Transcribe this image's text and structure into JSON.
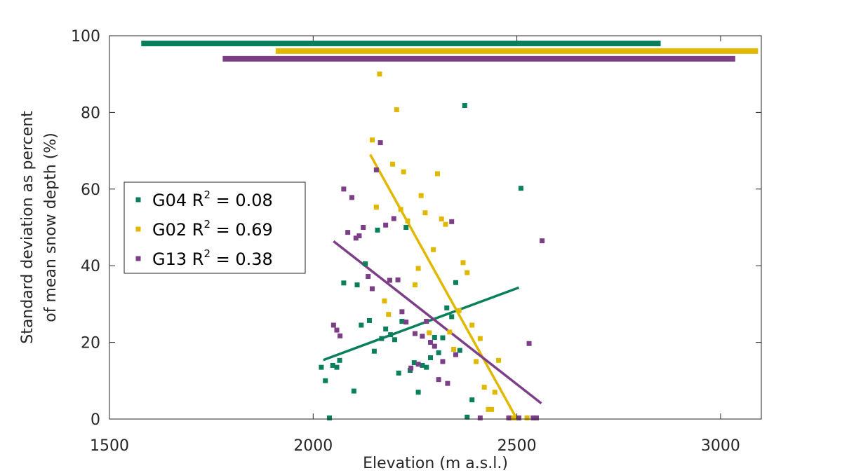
{
  "chart_data": {
    "type": "scatter",
    "title": "",
    "xlabel": "Elevation (m a.s.l.)",
    "ylabel_lines": [
      "Standard deviation as percent",
      "of mean snow depth (%)"
    ],
    "xlim": [
      1500,
      3100
    ],
    "ylim": [
      0,
      100
    ],
    "xticks": [
      "1500",
      "2000",
      "2500",
      "3000"
    ],
    "yticks": [
      "0",
      "20",
      "40",
      "60",
      "80",
      "100"
    ],
    "grid": false,
    "legend_position": "left",
    "series": [
      {
        "name": "G04",
        "r2_label": "R",
        "r2_sup": "2",
        "r2_value": " = 0.08",
        "color": "#0a7f5c",
        "points": [
          [
            2020,
            13.5
          ],
          [
            2030,
            10
          ],
          [
            2040,
            0.3
          ],
          [
            2048,
            14
          ],
          [
            2058,
            13.5
          ],
          [
            2065,
            15.3
          ],
          [
            2075,
            35.5
          ],
          [
            2100,
            7.3
          ],
          [
            2108,
            35
          ],
          [
            2118,
            24.5
          ],
          [
            2128,
            40.5
          ],
          [
            2138,
            25.7
          ],
          [
            2150,
            17.7
          ],
          [
            2158,
            49.3
          ],
          [
            2168,
            21
          ],
          [
            2178,
            23.5
          ],
          [
            2190,
            22
          ],
          [
            2200,
            20.7
          ],
          [
            2210,
            12
          ],
          [
            2218,
            25.5
          ],
          [
            2228,
            50
          ],
          [
            2238,
            12.7
          ],
          [
            2248,
            14.7
          ],
          [
            2258,
            7
          ],
          [
            2268,
            14
          ],
          [
            2278,
            13.5
          ],
          [
            2288,
            16
          ],
          [
            2298,
            21.3
          ],
          [
            2308,
            17.3
          ],
          [
            2318,
            21.2
          ],
          [
            2328,
            29
          ],
          [
            2340,
            26.7
          ],
          [
            2350,
            35.6
          ],
          [
            2360,
            17.9
          ],
          [
            2372,
            81.8
          ],
          [
            2378,
            0.5
          ],
          [
            2390,
            5
          ],
          [
            2510,
            60.2
          ]
        ],
        "trend": [
          [
            2025,
            15.4
          ],
          [
            2505,
            34.3
          ]
        ],
        "range_bar": [
          1578,
          2853
        ],
        "range_bar_y": 98
      },
      {
        "name": "G02",
        "r2_label": "R",
        "r2_sup": "2",
        "r2_value": " = 0.69",
        "color": "#e1b800",
        "points": [
          [
            2145,
            72.8
          ],
          [
            2155,
            55.3
          ],
          [
            2163,
            90
          ],
          [
            2175,
            30.8
          ],
          [
            2185,
            27.3
          ],
          [
            2195,
            66.5
          ],
          [
            2205,
            80.7
          ],
          [
            2215,
            54.7
          ],
          [
            2222,
            64.5
          ],
          [
            2232,
            51.7
          ],
          [
            2250,
            35
          ],
          [
            2258,
            39.3
          ],
          [
            2265,
            58.3
          ],
          [
            2275,
            53.8
          ],
          [
            2285,
            22.5
          ],
          [
            2295,
            44.2
          ],
          [
            2305,
            64
          ],
          [
            2315,
            52.2
          ],
          [
            2325,
            50.8
          ],
          [
            2335,
            22.7
          ],
          [
            2345,
            18.2
          ],
          [
            2358,
            28.3
          ],
          [
            2368,
            40.8
          ],
          [
            2378,
            38.2
          ],
          [
            2390,
            24.5
          ],
          [
            2400,
            15
          ],
          [
            2410,
            21
          ],
          [
            2420,
            8.3
          ],
          [
            2430,
            2.5
          ],
          [
            2438,
            2.5
          ],
          [
            2446,
            7
          ],
          [
            2455,
            15.3
          ],
          [
            2485,
            0.3
          ],
          [
            2495,
            0.3
          ],
          [
            2525,
            0.3
          ]
        ],
        "trend": [
          [
            2140,
            69
          ],
          [
            2500,
            0
          ]
        ],
        "range_bar": [
          1908,
          3092
        ],
        "range_bar_y": 96
      },
      {
        "name": "G13",
        "r2_label": "R",
        "r2_sup": "2",
        "r2_value": " = 0.38",
        "color": "#7c3f87",
        "points": [
          [
            2050,
            24.5
          ],
          [
            2058,
            23.2
          ],
          [
            2066,
            21.7
          ],
          [
            2075,
            60
          ],
          [
            2085,
            48.7
          ],
          [
            2095,
            57.8
          ],
          [
            2105,
            47.2
          ],
          [
            2113,
            47.8
          ],
          [
            2123,
            50
          ],
          [
            2135,
            37.2
          ],
          [
            2145,
            34
          ],
          [
            2155,
            65
          ],
          [
            2165,
            72.1
          ],
          [
            2178,
            50.6
          ],
          [
            2188,
            36.2
          ],
          [
            2198,
            52.3
          ],
          [
            2208,
            36.3
          ],
          [
            2218,
            28
          ],
          [
            2228,
            25.3
          ],
          [
            2240,
            13.3
          ],
          [
            2250,
            22.3
          ],
          [
            2258,
            14.3
          ],
          [
            2268,
            21.6
          ],
          [
            2278,
            25.5
          ],
          [
            2288,
            20
          ],
          [
            2298,
            19
          ],
          [
            2308,
            10.3
          ],
          [
            2318,
            15
          ],
          [
            2330,
            9.3
          ],
          [
            2340,
            51.5
          ],
          [
            2350,
            16.8
          ],
          [
            2410,
            0.3
          ],
          [
            2480,
            0.3
          ],
          [
            2505,
            0.3
          ],
          [
            2530,
            19.7
          ],
          [
            2540,
            0.3
          ],
          [
            2548,
            0.3
          ],
          [
            2562,
            46.5
          ]
        ],
        "trend": [
          [
            2050,
            46.4
          ],
          [
            2560,
            4.1
          ]
        ],
        "range_bar": [
          1778,
          3036
        ],
        "range_bar_y": 94
      }
    ]
  }
}
